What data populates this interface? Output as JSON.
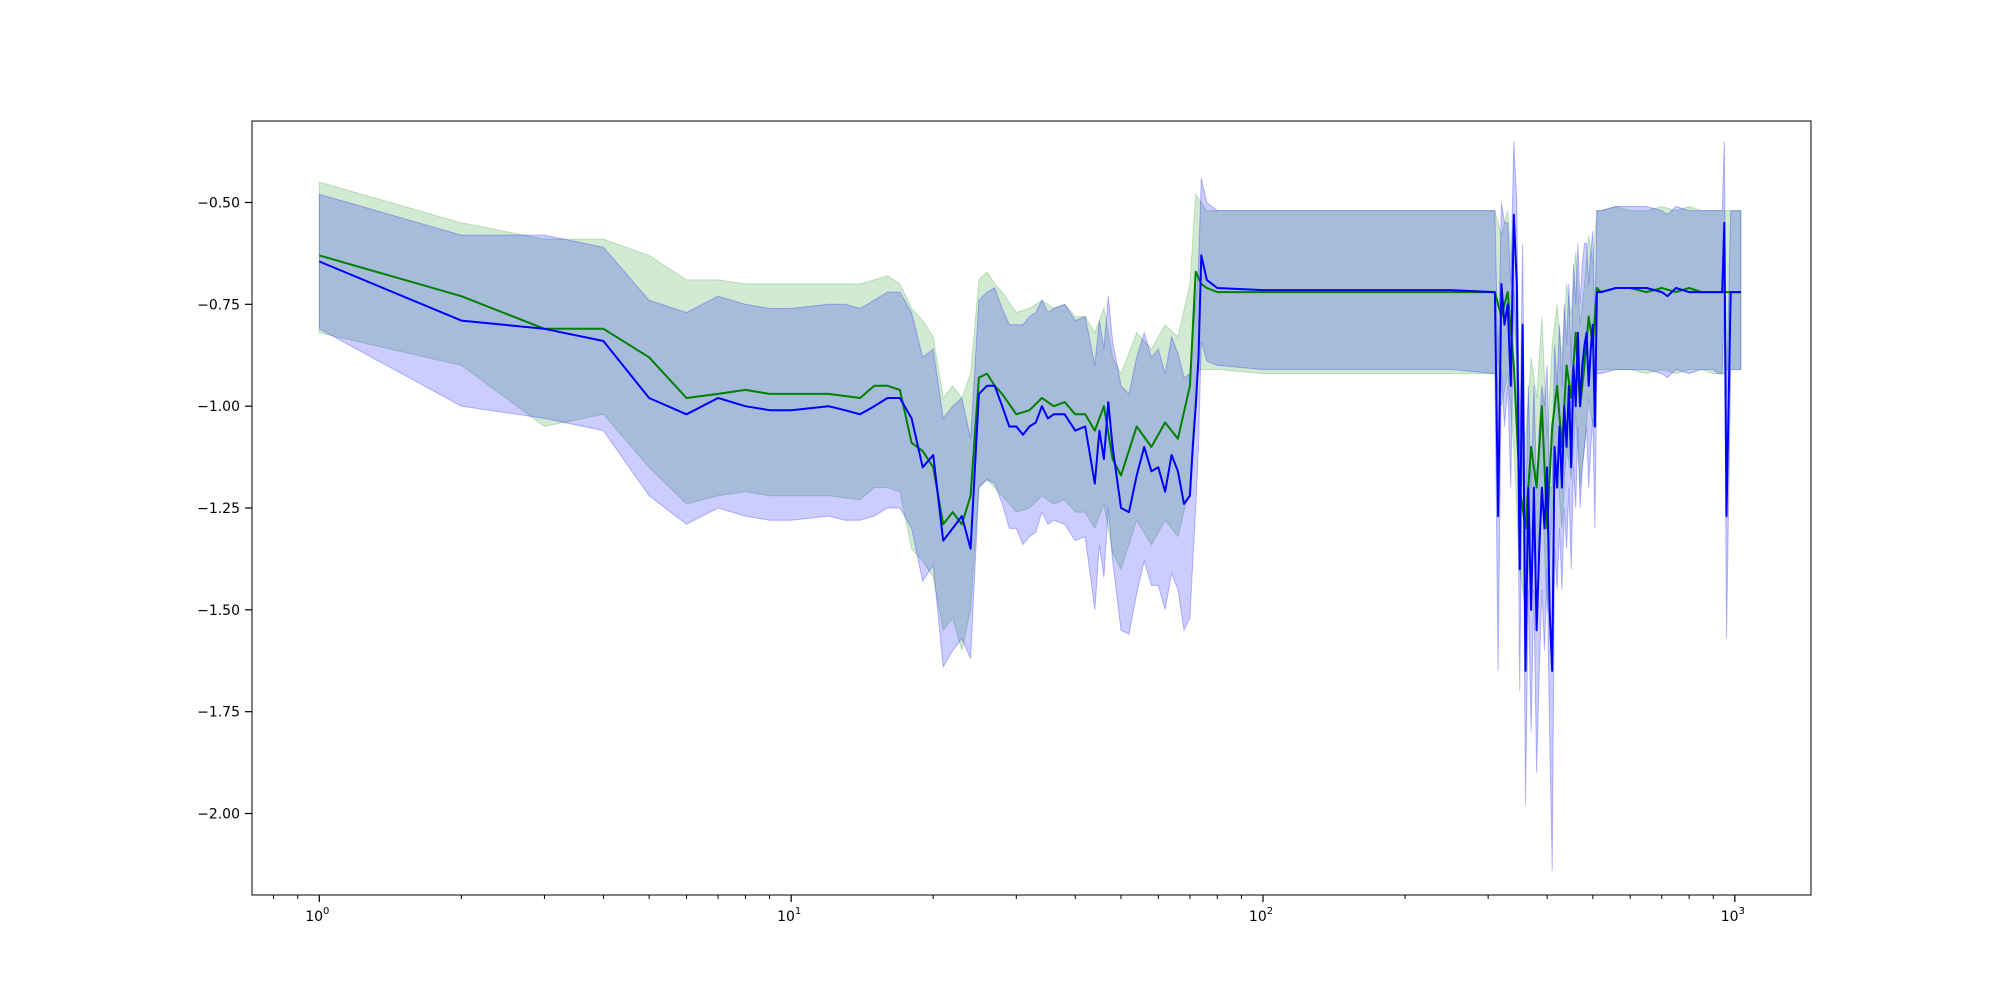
{
  "chart_data": {
    "type": "line",
    "title": "",
    "xlabel": "",
    "ylabel": "",
    "xscale": "log",
    "xlim": [
      0.72,
      1450
    ],
    "ylim": [
      -2.2,
      -0.3
    ],
    "grid": false,
    "legend": "none",
    "x_ticks": [
      {
        "value": 1,
        "base": "10",
        "exp": "0"
      },
      {
        "value": 10,
        "base": "10",
        "exp": "1"
      },
      {
        "value": 100,
        "base": "10",
        "exp": "2"
      },
      {
        "value": 1000,
        "base": "10",
        "exp": "3"
      }
    ],
    "y_ticks": [
      {
        "value": -0.5,
        "label": "−0.50"
      },
      {
        "value": -0.75,
        "label": "−0.75"
      },
      {
        "value": -1.0,
        "label": "−1.00"
      },
      {
        "value": -1.25,
        "label": "−1.25"
      },
      {
        "value": -1.5,
        "label": "−1.50"
      },
      {
        "value": -1.75,
        "label": "−1.75"
      },
      {
        "value": -2.0,
        "label": "−2.00"
      }
    ],
    "series": [
      {
        "color": "#008000",
        "band_color": "#2ca02c",
        "x": [
          1,
          2,
          3,
          4,
          5,
          6,
          7,
          8,
          9,
          10,
          12,
          14,
          15,
          16,
          17,
          18,
          19,
          20,
          21,
          22,
          23,
          24,
          25,
          26,
          27,
          28,
          30,
          32,
          34,
          36,
          38,
          40,
          42,
          44,
          46,
          48,
          50,
          54,
          58,
          62,
          66,
          70,
          72,
          74,
          76,
          80,
          100,
          150,
          200,
          250,
          310,
          320,
          330,
          340,
          350,
          360,
          370,
          380,
          390,
          400,
          410,
          420,
          430,
          440,
          450,
          460,
          470,
          480,
          490,
          500,
          510,
          520,
          560,
          600,
          650,
          700,
          750,
          800,
          850,
          900,
          930,
          950,
          960,
          980,
          1000,
          1030
        ],
        "y": [
          -0.63,
          -0.73,
          -0.81,
          -0.81,
          -0.88,
          -0.98,
          -0.97,
          -0.96,
          -0.97,
          -0.97,
          -0.97,
          -0.98,
          -0.95,
          -0.95,
          -0.96,
          -1.09,
          -1.11,
          -1.15,
          -1.29,
          -1.26,
          -1.29,
          -1.22,
          -0.93,
          -0.92,
          -0.95,
          -0.97,
          -1.02,
          -1.01,
          -0.98,
          -1.0,
          -0.99,
          -1.02,
          -1.02,
          -1.06,
          -1.0,
          -1.13,
          -1.17,
          -1.05,
          -1.1,
          -1.04,
          -1.08,
          -0.95,
          -0.67,
          -0.7,
          -0.71,
          -0.72,
          -0.72,
          -0.72,
          -0.72,
          -0.72,
          -0.72,
          -0.78,
          -0.72,
          -0.9,
          -1.2,
          -1.3,
          -1.1,
          -1.2,
          -1.0,
          -1.3,
          -1.05,
          -0.95,
          -1.1,
          -0.9,
          -0.98,
          -0.82,
          -1.0,
          -0.9,
          -0.78,
          -0.85,
          -0.71,
          -0.72,
          -0.71,
          -0.71,
          -0.72,
          -0.71,
          -0.72,
          -0.71,
          -0.72,
          -0.72,
          -0.72,
          -0.72,
          -0.72,
          -0.72,
          -0.72,
          -0.72
        ],
        "lower": [
          -0.82,
          -0.9,
          -1.05,
          -1.02,
          -1.15,
          -1.24,
          -1.22,
          -1.21,
          -1.22,
          -1.22,
          -1.22,
          -1.23,
          -1.2,
          -1.2,
          -1.21,
          -1.35,
          -1.38,
          -1.42,
          -1.55,
          -1.52,
          -1.6,
          -1.5,
          -1.2,
          -1.18,
          -1.2,
          -1.22,
          -1.26,
          -1.25,
          -1.22,
          -1.24,
          -1.23,
          -1.26,
          -1.26,
          -1.3,
          -1.24,
          -1.36,
          -1.4,
          -1.28,
          -1.34,
          -1.28,
          -1.32,
          -1.2,
          -0.92,
          -0.91,
          -0.91,
          -0.91,
          -0.92,
          -0.92,
          -0.92,
          -0.92,
          -0.92,
          -1.0,
          -0.92,
          -1.1,
          -1.4,
          -1.5,
          -1.3,
          -1.4,
          -1.2,
          -1.5,
          -1.25,
          -1.15,
          -1.3,
          -1.1,
          -1.18,
          -1.02,
          -1.2,
          -1.1,
          -0.98,
          -1.05,
          -0.91,
          -0.91,
          -0.91,
          -0.91,
          -0.92,
          -0.91,
          -0.92,
          -0.91,
          -0.91,
          -0.92,
          -0.92,
          -0.92,
          -0.91,
          -0.91,
          -0.91,
          -0.91
        ],
        "upper": [
          -0.45,
          -0.55,
          -0.59,
          -0.59,
          -0.63,
          -0.69,
          -0.69,
          -0.7,
          -0.7,
          -0.7,
          -0.7,
          -0.7,
          -0.69,
          -0.68,
          -0.7,
          -0.76,
          -0.79,
          -0.83,
          -0.98,
          -0.95,
          -0.98,
          -0.92,
          -0.69,
          -0.67,
          -0.7,
          -0.72,
          -0.77,
          -0.76,
          -0.74,
          -0.76,
          -0.75,
          -0.78,
          -0.78,
          -0.82,
          -0.76,
          -0.88,
          -0.92,
          -0.82,
          -0.86,
          -0.8,
          -0.83,
          -0.7,
          -0.48,
          -0.5,
          -0.52,
          -0.52,
          -0.52,
          -0.52,
          -0.52,
          -0.52,
          -0.52,
          -0.58,
          -0.52,
          -0.7,
          -0.98,
          -1.08,
          -0.88,
          -0.98,
          -0.78,
          -1.08,
          -0.85,
          -0.75,
          -0.88,
          -0.7,
          -0.78,
          -0.62,
          -0.8,
          -0.7,
          -0.58,
          -0.65,
          -0.52,
          -0.52,
          -0.51,
          -0.52,
          -0.52,
          -0.51,
          -0.52,
          -0.51,
          -0.52,
          -0.52,
          -0.52,
          -0.52,
          -0.52,
          -0.52,
          -0.52,
          -0.52
        ]
      },
      {
        "color": "#0000ff",
        "band_color": "#0000ff",
        "x": [
          1,
          2,
          3,
          4,
          5,
          6,
          7,
          8,
          9,
          10,
          12,
          13,
          14,
          15,
          16,
          17,
          18,
          19,
          20,
          21,
          22,
          23,
          24,
          25,
          26,
          27,
          28,
          29,
          30,
          31,
          32,
          33,
          34,
          35,
          36,
          38,
          40,
          42,
          44,
          45,
          46,
          47,
          48,
          50,
          52,
          54,
          56,
          58,
          60,
          62,
          64,
          66,
          68,
          70,
          71,
          72,
          73,
          74,
          76,
          80,
          100,
          150,
          200,
          250,
          310,
          315,
          320,
          325,
          330,
          335,
          340,
          345,
          350,
          355,
          360,
          365,
          370,
          375,
          380,
          385,
          390,
          395,
          400,
          405,
          410,
          415,
          420,
          425,
          430,
          435,
          440,
          445,
          450,
          455,
          460,
          465,
          470,
          475,
          480,
          485,
          490,
          495,
          500,
          505,
          510,
          520,
          560,
          600,
          650,
          700,
          720,
          750,
          800,
          850,
          900,
          920,
          930,
          940,
          950,
          960,
          980,
          1000,
          1030
        ],
        "y": [
          -0.645,
          -0.79,
          -0.81,
          -0.84,
          -0.98,
          -1.02,
          -0.98,
          -1.0,
          -1.01,
          -1.01,
          -1.0,
          -1.01,
          -1.02,
          -1.0,
          -0.98,
          -0.98,
          -1.03,
          -1.15,
          -1.12,
          -1.33,
          -1.3,
          -1.27,
          -1.35,
          -0.97,
          -0.95,
          -0.95,
          -1.0,
          -1.05,
          -1.05,
          -1.07,
          -1.05,
          -1.04,
          -1.0,
          -1.03,
          -1.02,
          -1.02,
          -1.06,
          -1.05,
          -1.19,
          -1.06,
          -1.13,
          -0.99,
          -1.1,
          -1.25,
          -1.26,
          -1.17,
          -1.1,
          -1.16,
          -1.15,
          -1.21,
          -1.12,
          -1.16,
          -1.24,
          -1.22,
          -1.1,
          -1.0,
          -0.88,
          -0.63,
          -0.69,
          -0.71,
          -0.715,
          -0.715,
          -0.715,
          -0.715,
          -0.72,
          -1.27,
          -0.7,
          -0.8,
          -0.75,
          -0.95,
          -0.53,
          -0.7,
          -1.4,
          -0.8,
          -1.65,
          -1.2,
          -1.5,
          -1.2,
          -1.55,
          -1.35,
          -1.2,
          -1.3,
          -1.15,
          -1.5,
          -1.65,
          -1.1,
          -1.2,
          -1.05,
          -1.2,
          -1.0,
          -1.1,
          -0.95,
          -1.15,
          -0.9,
          -1.0,
          -0.82,
          -1.0,
          -0.9,
          -0.85,
          -0.82,
          -0.95,
          -0.86,
          -0.8,
          -1.05,
          -0.72,
          -0.72,
          -0.71,
          -0.71,
          -0.71,
          -0.72,
          -0.73,
          -0.71,
          -0.72,
          -0.72,
          -0.72,
          -0.72,
          -0.72,
          -0.72,
          -0.55,
          -1.27,
          -0.72,
          -0.72,
          -0.72
        ],
        "lower": [
          -0.81,
          -1.0,
          -1.03,
          -1.06,
          -1.22,
          -1.29,
          -1.25,
          -1.27,
          -1.28,
          -1.28,
          -1.27,
          -1.28,
          -1.28,
          -1.27,
          -1.25,
          -1.25,
          -1.3,
          -1.43,
          -1.39,
          -1.64,
          -1.6,
          -1.57,
          -1.62,
          -1.2,
          -1.18,
          -1.19,
          -1.24,
          -1.3,
          -1.3,
          -1.34,
          -1.32,
          -1.31,
          -1.26,
          -1.29,
          -1.28,
          -1.29,
          -1.33,
          -1.32,
          -1.5,
          -1.34,
          -1.42,
          -1.25,
          -1.38,
          -1.55,
          -1.56,
          -1.46,
          -1.38,
          -1.44,
          -1.44,
          -1.5,
          -1.41,
          -1.45,
          -1.55,
          -1.52,
          -1.38,
          -1.25,
          -1.1,
          -0.84,
          -0.89,
          -0.9,
          -0.91,
          -0.91,
          -0.91,
          -0.91,
          -0.92,
          -1.65,
          -0.91,
          -1.05,
          -0.95,
          -1.2,
          -0.72,
          -0.9,
          -1.7,
          -1.0,
          -1.98,
          -1.45,
          -1.8,
          -1.45,
          -1.9,
          -1.65,
          -1.45,
          -1.6,
          -1.4,
          -1.8,
          -2.14,
          -1.35,
          -1.45,
          -1.3,
          -1.45,
          -1.25,
          -1.35,
          -1.2,
          -1.4,
          -1.15,
          -1.25,
          -1.05,
          -1.25,
          -1.15,
          -1.1,
          -1.05,
          -1.2,
          -1.1,
          -1.03,
          -1.3,
          -0.92,
          -0.92,
          -0.91,
          -0.91,
          -0.91,
          -0.92,
          -0.93,
          -0.91,
          -0.92,
          -0.91,
          -0.91,
          -0.92,
          -0.92,
          -0.92,
          -0.75,
          -1.57,
          -0.91,
          -0.91,
          -0.91
        ],
        "upper": [
          -0.48,
          -0.58,
          -0.58,
          -0.61,
          -0.74,
          -0.77,
          -0.73,
          -0.75,
          -0.76,
          -0.76,
          -0.75,
          -0.75,
          -0.76,
          -0.74,
          -0.72,
          -0.72,
          -0.77,
          -0.88,
          -0.86,
          -1.03,
          -1.0,
          -0.98,
          -1.08,
          -0.74,
          -0.72,
          -0.71,
          -0.76,
          -0.8,
          -0.8,
          -0.8,
          -0.78,
          -0.77,
          -0.74,
          -0.77,
          -0.76,
          -0.75,
          -0.79,
          -0.78,
          -0.9,
          -0.79,
          -0.86,
          -0.73,
          -0.84,
          -0.95,
          -0.97,
          -0.88,
          -0.82,
          -0.88,
          -0.86,
          -0.92,
          -0.83,
          -0.87,
          -0.93,
          -0.92,
          -0.82,
          -0.75,
          -0.65,
          -0.44,
          -0.5,
          -0.52,
          -0.52,
          -0.52,
          -0.52,
          -0.52,
          -0.52,
          -0.9,
          -0.5,
          -0.55,
          -0.55,
          -0.7,
          -0.35,
          -0.5,
          -1.1,
          -0.6,
          -1.3,
          -0.95,
          -1.2,
          -0.95,
          -1.2,
          -1.05,
          -0.95,
          -1.0,
          -0.9,
          -1.2,
          -1.2,
          -0.85,
          -0.95,
          -0.8,
          -0.95,
          -0.75,
          -0.85,
          -0.7,
          -0.9,
          -0.65,
          -0.75,
          -0.6,
          -0.75,
          -0.65,
          -0.6,
          -0.6,
          -0.7,
          -0.62,
          -0.57,
          -0.8,
          -0.52,
          -0.52,
          -0.51,
          -0.51,
          -0.51,
          -0.52,
          -0.53,
          -0.51,
          -0.52,
          -0.52,
          -0.52,
          -0.52,
          -0.52,
          -0.52,
          -0.35,
          -0.97,
          -0.52,
          -0.52,
          -0.52
        ]
      }
    ]
  }
}
